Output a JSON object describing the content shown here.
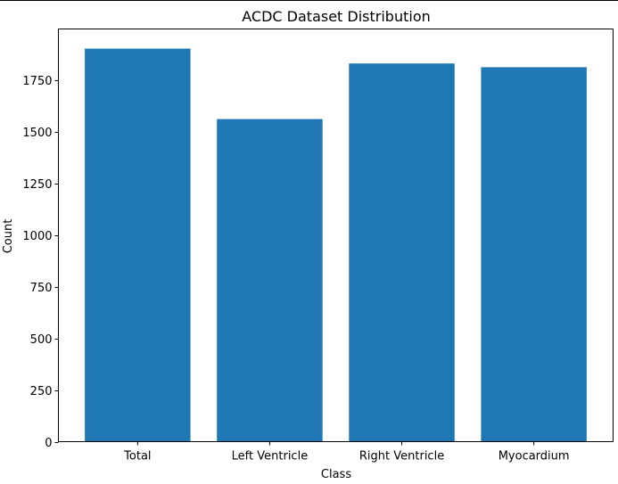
{
  "chart_data": {
    "type": "bar",
    "title": "ACDC Dataset Distribution",
    "xlabel": "Class",
    "ylabel": "Count",
    "categories": [
      "Total",
      "Left Ventricle",
      "Right Ventricle",
      "Myocardium"
    ],
    "values": [
      1902,
      1561,
      1830,
      1812
    ],
    "ylim": [
      0,
      1997
    ],
    "yticks": [
      0,
      250,
      500,
      750,
      1000,
      1250,
      1500,
      1750
    ],
    "bar_color": "#1f77b4",
    "grid": false,
    "legend": "none"
  }
}
